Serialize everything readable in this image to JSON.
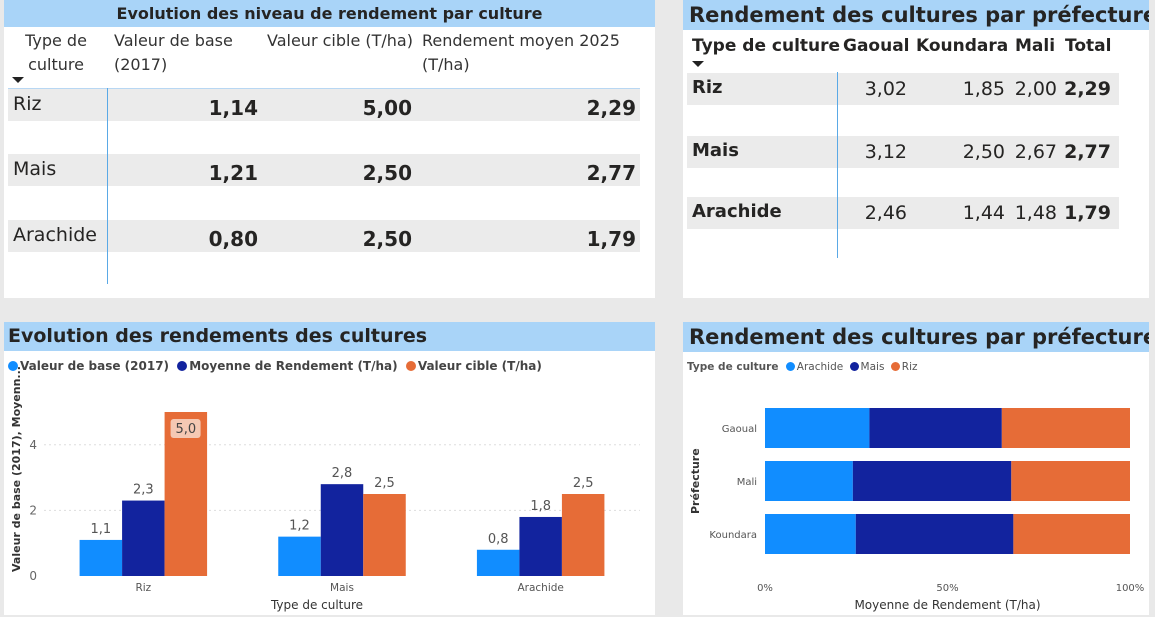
{
  "table1": {
    "title": "Evolution des niveau de rendement par culture",
    "headers": [
      "Type de culture",
      "Valeur de base (2017)",
      "Valeur cible (T/ha)",
      "Rendement moyen 2025 (T/ha)"
    ],
    "header_lines": {
      "type": [
        "Type de",
        "culture"
      ],
      "base": [
        "Valeur de base",
        "(2017)"
      ],
      "cible": [
        "Valeur cible (T/ha)"
      ],
      "moyen": [
        "Rendement moyen 2025",
        "(T/ha)"
      ]
    },
    "rows": [
      {
        "culture": "Riz",
        "base": "1,14",
        "cible": "5,00",
        "moyen": "2,29"
      },
      {
        "culture": "Mais",
        "base": "1,21",
        "cible": "2,50",
        "moyen": "2,77"
      },
      {
        "culture": "Arachide",
        "base": "0,80",
        "cible": "2,50",
        "moyen": "1,79"
      }
    ]
  },
  "table2": {
    "title": "Rendement des cultures par préfecture",
    "headers": [
      "Type de culture",
      "Gaoual",
      "Koundara",
      "Mali",
      "Total"
    ],
    "rows": [
      {
        "culture": "Riz",
        "gaoual": "3,02",
        "koundara": "1,85",
        "mali": "2,00",
        "total": "2,29"
      },
      {
        "culture": "Mais",
        "gaoual": "3,12",
        "koundara": "2,50",
        "mali": "2,67",
        "total": "2,77"
      },
      {
        "culture": "Arachide",
        "gaoual": "2,46",
        "koundara": "1,44",
        "mali": "1,48",
        "total": "1,79"
      }
    ]
  },
  "colors": {
    "light_blue": "#118dff",
    "dark_blue": "#12239e",
    "orange": "#e66c37",
    "header_bg": "#a9d4f8"
  },
  "chart_data": [
    {
      "type": "bar",
      "title": "Evolution des rendements des cultures",
      "xlabel": "Type de culture",
      "ylabel": "Valeur de base (2017), Moyenn...",
      "categories": [
        "Riz",
        "Mais",
        "Arachide"
      ],
      "series": [
        {
          "name": "Valeur de base (2017)",
          "values": [
            1.1,
            1.2,
            0.8
          ],
          "labels": [
            "1,1",
            "1,2",
            "0,8"
          ],
          "color": "#118dff"
        },
        {
          "name": "Moyenne de Rendement (T/ha)",
          "values": [
            2.3,
            2.8,
            1.8
          ],
          "labels": [
            "2,3",
            "2,8",
            "1,8"
          ],
          "color": "#12239e"
        },
        {
          "name": "Valeur cible (T/ha)",
          "values": [
            5.0,
            2.5,
            2.5
          ],
          "labels": [
            "5,0",
            "2,5",
            "2,5"
          ],
          "color": "#e66c37"
        }
      ],
      "ylim": [
        0,
        5.0
      ],
      "yticks": [
        0,
        2,
        4
      ],
      "legend": "top-left",
      "grid": true
    },
    {
      "type": "bar",
      "orientation": "horizontal-100%-stacked",
      "title": "Rendement des cultures par préfecture",
      "xlabel": "Moyenne de Rendement (T/ha)",
      "ylabel": "Préfecture",
      "legend_title": "Type de culture",
      "categories": [
        "Gaoual",
        "Mali",
        "Koundara"
      ],
      "series": [
        {
          "name": "Arachide",
          "values": [
            2.46,
            1.48,
            1.44
          ],
          "color": "#118dff"
        },
        {
          "name": "Mais",
          "values": [
            3.12,
            2.67,
            2.5
          ],
          "color": "#12239e"
        },
        {
          "name": "Riz",
          "values": [
            3.02,
            2.0,
            1.85
          ],
          "color": "#e66c37"
        }
      ],
      "xticks": [
        "0%",
        "50%",
        "100%"
      ],
      "legend": "top-left"
    }
  ]
}
